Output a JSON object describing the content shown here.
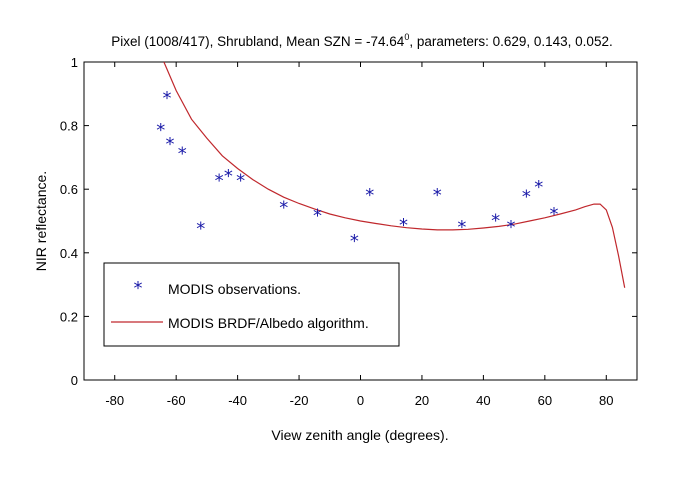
{
  "chart_data": {
    "type": "scatter",
    "title": "Pixel (1008/417), Shrubland, Mean SZN  = -74.64",
    "title_superscript": "0",
    "title_suffix": ", parameters: 0.629, 0.143, 0.052.",
    "xlabel": "View zenith angle (degrees).",
    "ylabel": "NIR reflectance.",
    "xlim": [
      -90,
      90
    ],
    "ylim": [
      0,
      1
    ],
    "x_ticks": [
      -80,
      -60,
      -40,
      -20,
      0,
      20,
      40,
      60,
      80
    ],
    "y_ticks": [
      0,
      0.2,
      0.4,
      0.6,
      0.8,
      1
    ],
    "y_tick_labels": [
      "0",
      "0.2",
      "0.4",
      "0.6",
      "0.8",
      "1"
    ],
    "grid": false,
    "legend_position": "bottom-left",
    "series": [
      {
        "name": "MODIS observations.",
        "kind": "scatter",
        "marker": "*",
        "color": "#1a1aa8",
        "x": [
          -65,
          -63,
          -62,
          -58,
          -52,
          -46,
          -43,
          -39,
          -25,
          -14,
          -2,
          3,
          14,
          25,
          33,
          44,
          49,
          54,
          58,
          63
        ],
        "y": [
          0.79,
          0.89,
          0.745,
          0.715,
          0.48,
          0.63,
          0.645,
          0.63,
          0.545,
          0.52,
          0.44,
          0.585,
          0.49,
          0.585,
          0.485,
          0.505,
          0.485,
          0.58,
          0.61,
          0.525
        ]
      },
      {
        "name": "MODIS BRDF/Albedo algorithm.",
        "kind": "line",
        "color": "#c0282d",
        "x": [
          -64,
          -60,
          -55,
          -50,
          -45,
          -40,
          -35,
          -30,
          -25,
          -20,
          -15,
          -10,
          -5,
          0,
          5,
          10,
          15,
          20,
          25,
          30,
          35,
          40,
          45,
          50,
          55,
          60,
          65,
          70,
          73,
          76,
          78,
          80,
          82,
          84,
          86
        ],
        "y": [
          1.0,
          0.91,
          0.82,
          0.76,
          0.705,
          0.665,
          0.63,
          0.6,
          0.575,
          0.555,
          0.538,
          0.522,
          0.51,
          0.5,
          0.492,
          0.485,
          0.479,
          0.475,
          0.472,
          0.472,
          0.474,
          0.478,
          0.483,
          0.49,
          0.5,
          0.51,
          0.522,
          0.535,
          0.545,
          0.553,
          0.553,
          0.535,
          0.48,
          0.39,
          0.29
        ]
      }
    ]
  }
}
